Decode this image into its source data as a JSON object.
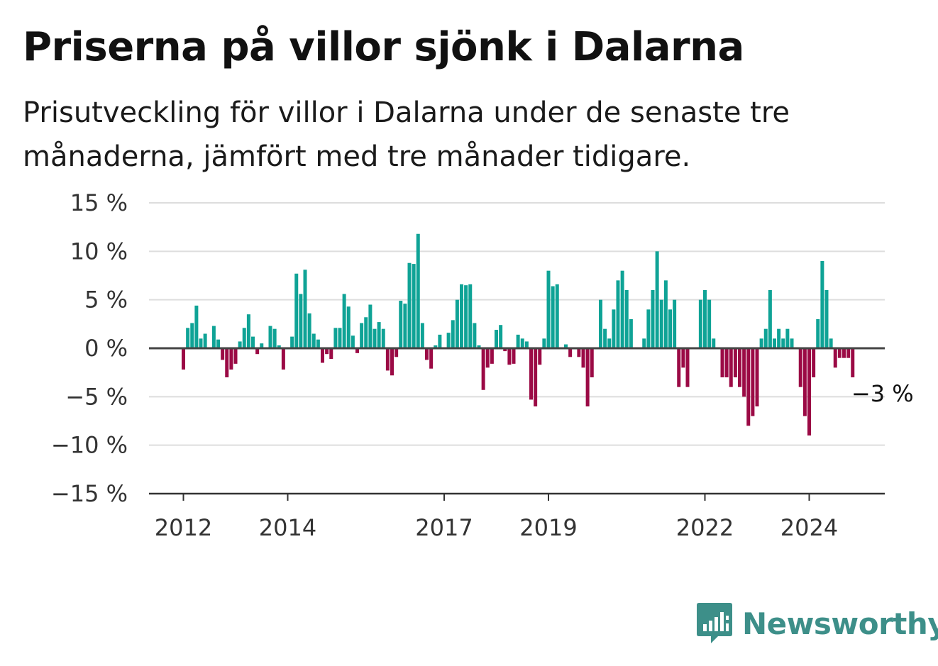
{
  "title": "Priserna på villor sjönk i Dalarna",
  "subtitle": "Prisutveckling för villor i Dalarna under de senaste tre månaderna, jämfört med tre månader tidigare.",
  "brand": {
    "name": "Newsworthy",
    "icon": "newsworthy-logo-icon",
    "color": "#3d8f89"
  },
  "colors": {
    "positive": "#0fa396",
    "negative": "#9b0a45",
    "zero_line": "#444444",
    "grid": "#dddddd"
  },
  "chart_data": {
    "type": "bar",
    "title": "Priserna på villor sjönk i Dalarna",
    "subtitle": "Prisutveckling för villor i Dalarna under de senaste tre månaderna, jämfört med tre månader tidigare.",
    "xlabel": "",
    "ylabel": "",
    "x_start": "2012-01",
    "frequency": "monthly",
    "ylim": [
      -15,
      15
    ],
    "y_ticks": [
      15,
      10,
      5,
      0,
      -5,
      -10,
      -15
    ],
    "y_tick_labels": [
      "15 %",
      "10 %",
      "5 %",
      "0 %",
      "−5 %",
      "−10 %",
      "−15 %"
    ],
    "x_tick_labels": [
      "2012",
      "2014",
      "2017",
      "2019",
      "2022",
      "2024"
    ],
    "grid": true,
    "series": [
      {
        "values": [
          -2.2,
          2.1,
          2.6,
          4.4,
          1.0,
          1.5,
          0,
          2.3,
          0.9,
          -1.2,
          -3.0,
          -2.2,
          -1.6,
          0.7,
          2.1,
          3.5,
          1.2,
          -0.6,
          0.5,
          0,
          2.3,
          2.0,
          0.3,
          -2.2,
          0,
          1.2,
          7.7,
          5.6,
          8.1,
          3.6,
          1.5,
          0.9,
          -1.5,
          -0.6,
          -1.1,
          2.1,
          2.1,
          5.6,
          4.3,
          1.3,
          -0.5,
          2.6,
          3.2,
          4.5,
          2.0,
          2.7,
          2.0,
          -2.3,
          -2.8,
          -0.9,
          4.9,
          4.6,
          8.8,
          8.7,
          11.8,
          2.6,
          -1.2,
          -2.1,
          0.3,
          1.4,
          0,
          1.6,
          2.9,
          5.0,
          6.6,
          6.5,
          6.6,
          2.6,
          0.3,
          -4.3,
          -2.0,
          -1.6,
          1.9,
          2.4,
          -0.3,
          -1.7,
          -1.6,
          1.4,
          1.0,
          0.7,
          -5.3,
          -6.0,
          -1.7,
          1.0,
          8.0,
          6.4,
          6.6,
          0,
          0.4,
          -0.9,
          0,
          -0.9,
          -2.0,
          -6.0,
          -3.0,
          0,
          5.0,
          2.0,
          1.0,
          4.0,
          7.0,
          8.0,
          6.0,
          3.0,
          0,
          0,
          1.0,
          4.0,
          6.0,
          10.0,
          5.0,
          7.0,
          4.0,
          5.0,
          -4.0,
          -2.0,
          -4.0,
          0,
          0,
          5.0,
          6.0,
          5.0,
          1.0,
          0,
          -3.0,
          -3.0,
          -4.0,
          -3.0,
          -4.0,
          -5.0,
          -8.0,
          -7.0,
          -6.0,
          1.0,
          2.0,
          6.0,
          1.0,
          2.0,
          1.0,
          2.0,
          1.0,
          0,
          -4.0,
          -7.0,
          -9.0,
          -3.0,
          3.0,
          9.0,
          6.0,
          1.0,
          -2.0,
          -1.0,
          -1.0,
          -1.0,
          -3.0
        ]
      }
    ],
    "end_label": "−3 %"
  }
}
